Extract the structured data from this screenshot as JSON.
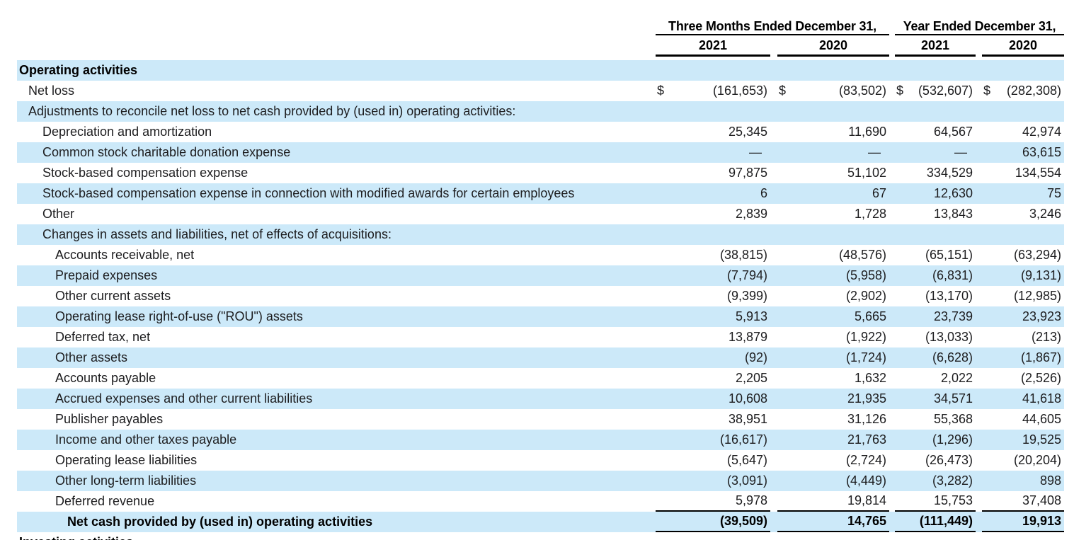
{
  "table": {
    "colors": {
      "row_shade": "#cce9f9",
      "text": "#1d1d1f",
      "rule": "#000000"
    },
    "currency_symbol": "$",
    "groups": [
      {
        "label": "Three Months Ended December 31,"
      },
      {
        "label": "Year Ended December 31,"
      }
    ],
    "year_columns": [
      "2021",
      "2020",
      "2021",
      "2020"
    ],
    "rows": [
      {
        "label": "Operating activities",
        "indent": 0,
        "bold": true,
        "shaded": true,
        "dollar": false,
        "rule_below": false,
        "values": null
      },
      {
        "label": "Net loss",
        "indent": 1,
        "bold": false,
        "shaded": false,
        "dollar": true,
        "rule_below": false,
        "values": [
          "(161,653)",
          "(83,502)",
          "(532,607)",
          "(282,308)"
        ]
      },
      {
        "label": "Adjustments to reconcile net loss to net cash provided by (used in) operating activities:",
        "indent": 1,
        "bold": false,
        "shaded": true,
        "dollar": false,
        "rule_below": false,
        "values": null
      },
      {
        "label": "Depreciation and amortization",
        "indent": 2,
        "bold": false,
        "shaded": false,
        "dollar": false,
        "rule_below": false,
        "values": [
          "25,345",
          "11,690",
          "64,567",
          "42,974"
        ]
      },
      {
        "label": "Common stock charitable donation expense",
        "indent": 2,
        "bold": false,
        "shaded": true,
        "dollar": false,
        "rule_below": false,
        "values": [
          "—",
          "—",
          "—",
          "63,615"
        ]
      },
      {
        "label": "Stock-based compensation expense",
        "indent": 2,
        "bold": false,
        "shaded": false,
        "dollar": false,
        "rule_below": false,
        "values": [
          "97,875",
          "51,102",
          "334,529",
          "134,554"
        ]
      },
      {
        "label": "Stock-based compensation expense in connection with modified awards for certain employees",
        "indent": 2,
        "bold": false,
        "shaded": true,
        "dollar": false,
        "rule_below": false,
        "values": [
          "6",
          "67",
          "12,630",
          "75"
        ]
      },
      {
        "label": "Other",
        "indent": 2,
        "bold": false,
        "shaded": false,
        "dollar": false,
        "rule_below": false,
        "values": [
          "2,839",
          "1,728",
          "13,843",
          "3,246"
        ]
      },
      {
        "label": "Changes in assets and liabilities, net of effects of acquisitions:",
        "indent": 2,
        "bold": false,
        "shaded": true,
        "dollar": false,
        "rule_below": false,
        "values": null
      },
      {
        "label": "Accounts receivable, net",
        "indent": 3,
        "bold": false,
        "shaded": false,
        "dollar": false,
        "rule_below": false,
        "values": [
          "(38,815)",
          "(48,576)",
          "(65,151)",
          "(63,294)"
        ]
      },
      {
        "label": "Prepaid expenses",
        "indent": 3,
        "bold": false,
        "shaded": true,
        "dollar": false,
        "rule_below": false,
        "values": [
          "(7,794)",
          "(5,958)",
          "(6,831)",
          "(9,131)"
        ]
      },
      {
        "label": "Other current assets",
        "indent": 3,
        "bold": false,
        "shaded": false,
        "dollar": false,
        "rule_below": false,
        "values": [
          "(9,399)",
          "(2,902)",
          "(13,170)",
          "(12,985)"
        ]
      },
      {
        "label": "Operating lease right-of-use (\"ROU\") assets",
        "indent": 3,
        "bold": false,
        "shaded": true,
        "dollar": false,
        "rule_below": false,
        "values": [
          "5,913",
          "5,665",
          "23,739",
          "23,923"
        ]
      },
      {
        "label": "Deferred tax, net",
        "indent": 3,
        "bold": false,
        "shaded": false,
        "dollar": false,
        "rule_below": false,
        "values": [
          "13,879",
          "(1,922)",
          "(13,033)",
          "(213)"
        ]
      },
      {
        "label": "Other assets",
        "indent": 3,
        "bold": false,
        "shaded": true,
        "dollar": false,
        "rule_below": false,
        "values": [
          "(92)",
          "(1,724)",
          "(6,628)",
          "(1,867)"
        ]
      },
      {
        "label": "Accounts payable",
        "indent": 3,
        "bold": false,
        "shaded": false,
        "dollar": false,
        "rule_below": false,
        "values": [
          "2,205",
          "1,632",
          "2,022",
          "(2,526)"
        ]
      },
      {
        "label": "Accrued expenses and other current liabilities",
        "indent": 3,
        "bold": false,
        "shaded": true,
        "dollar": false,
        "rule_below": false,
        "values": [
          "10,608",
          "21,935",
          "34,571",
          "41,618"
        ]
      },
      {
        "label": "Publisher payables",
        "indent": 3,
        "bold": false,
        "shaded": false,
        "dollar": false,
        "rule_below": false,
        "values": [
          "38,951",
          "31,126",
          "55,368",
          "44,605"
        ]
      },
      {
        "label": "Income and other taxes payable",
        "indent": 3,
        "bold": false,
        "shaded": true,
        "dollar": false,
        "rule_below": false,
        "values": [
          "(16,617)",
          "21,763",
          "(1,296)",
          "19,525"
        ]
      },
      {
        "label": "Operating lease liabilities",
        "indent": 3,
        "bold": false,
        "shaded": false,
        "dollar": false,
        "rule_below": false,
        "values": [
          "(5,647)",
          "(2,724)",
          "(26,473)",
          "(20,204)"
        ]
      },
      {
        "label": "Other long-term liabilities",
        "indent": 3,
        "bold": false,
        "shaded": true,
        "dollar": false,
        "rule_below": false,
        "values": [
          "(3,091)",
          "(4,449)",
          "(3,282)",
          "898"
        ]
      },
      {
        "label": "Deferred revenue",
        "indent": 3,
        "bold": false,
        "shaded": false,
        "dollar": false,
        "rule_below": true,
        "values": [
          "5,978",
          "19,814",
          "15,753",
          "37,408"
        ]
      },
      {
        "label": "Net cash provided by (used in) operating activities",
        "indent": 4,
        "bold": true,
        "shaded": true,
        "dollar": false,
        "rule_below": true,
        "values": [
          "(39,509)",
          "14,765",
          "(111,449)",
          "19,913"
        ]
      },
      {
        "label": "Investing activities",
        "indent": 0,
        "bold": true,
        "shaded": false,
        "dollar": false,
        "rule_below": false,
        "values": null
      }
    ]
  }
}
